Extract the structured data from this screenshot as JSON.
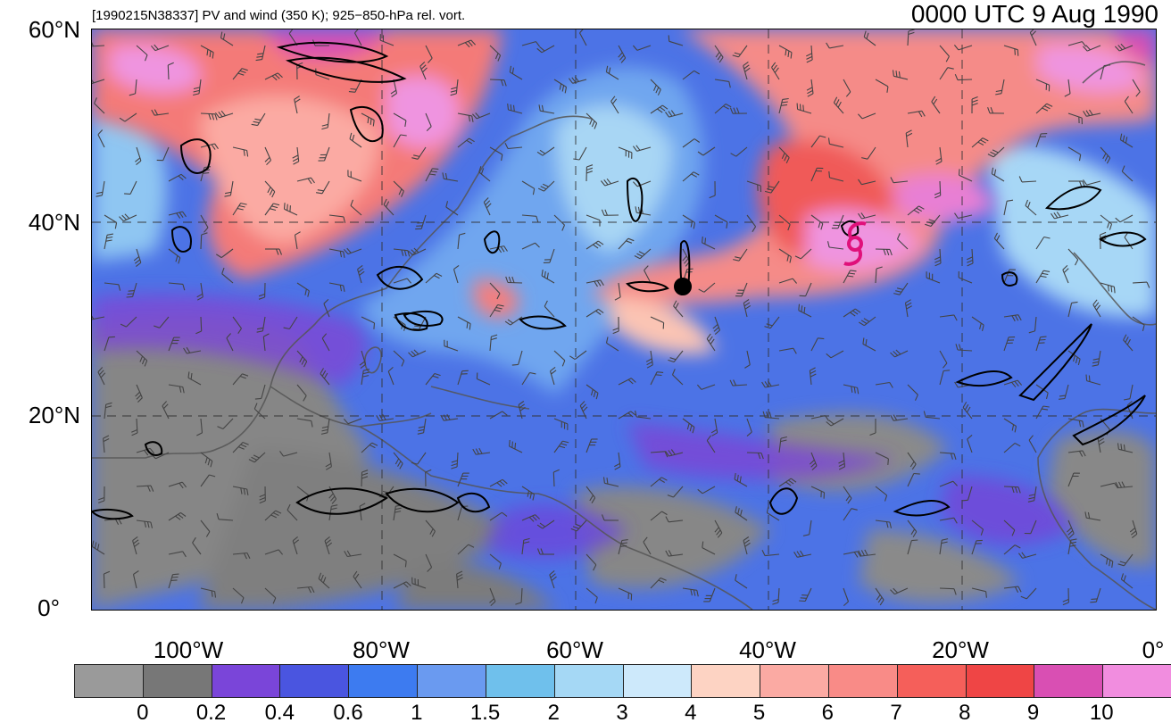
{
  "header": {
    "subtitle": "[1990215N38337] PV and wind (350 K); 925−850-hPa rel. vort.",
    "timestamp": "0000 UTC 9 Aug 1990"
  },
  "axes": {
    "lat_labels": [
      "60°N",
      "40°N",
      "20°N",
      "0°"
    ],
    "lon_labels": [
      "100°W",
      "80°W",
      "60°W",
      "40°W",
      "20°W",
      "0°"
    ]
  },
  "colorbar": {
    "labels": [
      "0",
      "0.2",
      "0.4",
      "0.6",
      "1",
      "1.5",
      "2",
      "3",
      "4",
      "5",
      "6",
      "7",
      "8",
      "9",
      "10"
    ],
    "colors": [
      "#9a9a9a",
      "#777777",
      "#7a45d9",
      "#4a55e0",
      "#3d7bf0",
      "#6a9af0",
      "#6fc0ec",
      "#a5d8f5",
      "#cde9fb",
      "#fdd3c3",
      "#fbaaa3",
      "#f98b87",
      "#f55f5a",
      "#ef4545",
      "#d94fb3",
      "#f18ddf"
    ]
  },
  "storm_marker": {
    "name": "tropical-cyclone-icon",
    "color": "#e0107a"
  }
}
